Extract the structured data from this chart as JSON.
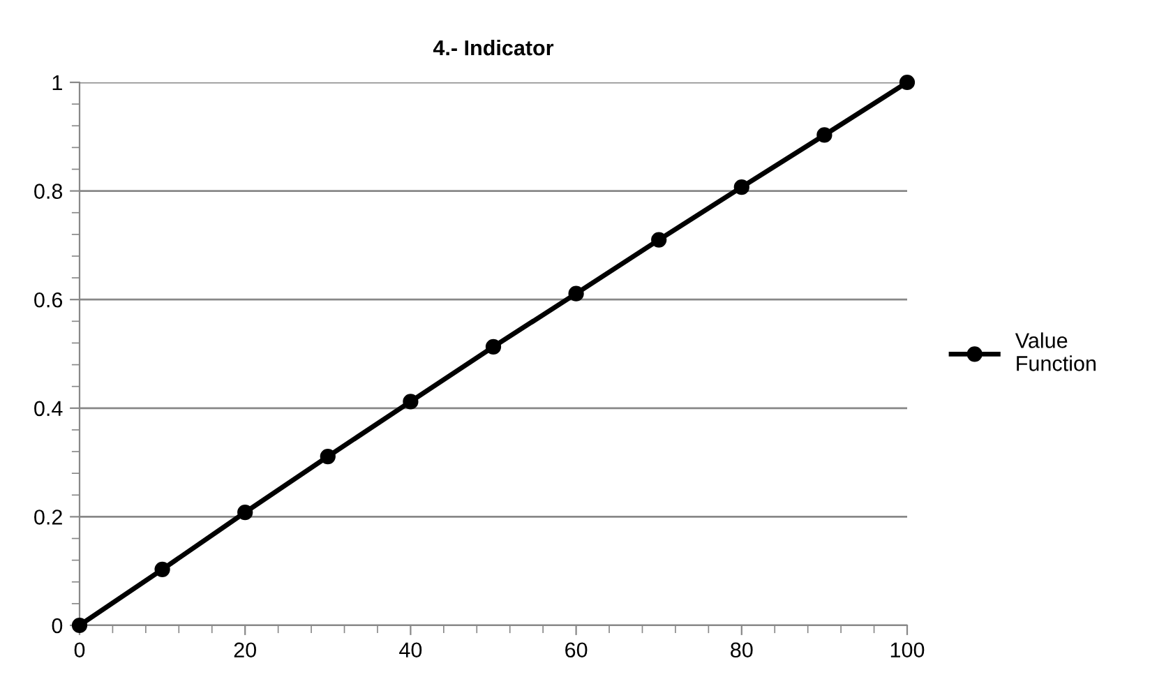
{
  "chart_data": {
    "type": "line",
    "title": "4.- Indicator",
    "x": [
      0,
      10,
      20,
      30,
      40,
      50,
      60,
      70,
      80,
      90,
      100
    ],
    "series": [
      {
        "name": "Value\nFunction",
        "color": "#000000",
        "values": [
          0,
          0.103,
          0.208,
          0.311,
          0.412,
          0.513,
          0.611,
          0.71,
          0.807,
          0.903,
          1
        ]
      }
    ],
    "xlim": [
      0,
      100
    ],
    "xticks": [
      0,
      20,
      40,
      60,
      80,
      100
    ],
    "ylim": [
      0,
      1
    ],
    "yticks": [
      0,
      0.2,
      0.4,
      0.6,
      0.8,
      1
    ],
    "grid": "y",
    "legend": "right",
    "marker": "circle",
    "line_style": "solid"
  }
}
